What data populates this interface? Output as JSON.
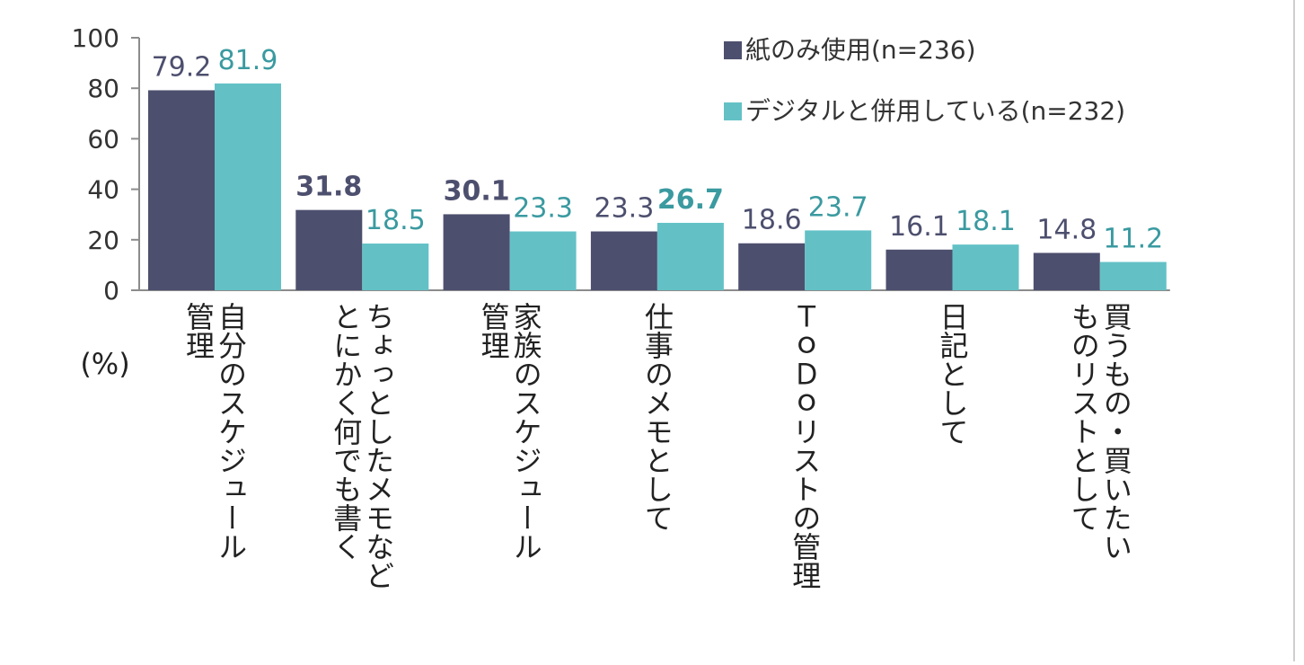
{
  "chart_data": {
    "type": "bar",
    "ylabel": "(%)",
    "ylim": [
      0,
      100
    ],
    "yticks": [
      "0",
      "20",
      "40",
      "60",
      "80",
      "100"
    ],
    "ytick_values": [
      0,
      20,
      40,
      60,
      80,
      100
    ],
    "categories": [
      [
        "自分のスケジュール",
        "管理"
      ],
      [
        "ちょっとしたメモなど",
        "とにかく何でも書く"
      ],
      [
        "家族のスケジュール",
        "管理"
      ],
      [
        "仕事のメモとして"
      ],
      [
        "ＴｏＤｏリストの管理"
      ],
      [
        "日記として"
      ],
      [
        "買うもの・買いたい",
        "ものリストとして"
      ]
    ],
    "series": [
      {
        "name": "紙のみ使用(n=236)",
        "color": "#4d4f6e",
        "label_color": "#4d4f6e",
        "values": [
          79.2,
          31.8,
          30.1,
          23.3,
          18.6,
          16.1,
          14.8
        ],
        "labels": [
          "79.2",
          "31.8",
          "30.1",
          "23.3",
          "18.6",
          "16.1",
          "14.8"
        ],
        "bold": [
          false,
          true,
          true,
          false,
          false,
          false,
          false
        ]
      },
      {
        "name": "デジタルと併用している(n=232)",
        "color": "#63c1c6",
        "label_color": "#3a9aa0",
        "values": [
          81.9,
          18.5,
          23.3,
          26.7,
          23.7,
          18.1,
          11.2
        ],
        "labels": [
          "81.9",
          "18.5",
          "23.3",
          "26.7",
          "23.7",
          "18.1",
          "11.2"
        ],
        "bold": [
          false,
          false,
          false,
          true,
          false,
          false,
          false
        ]
      }
    ],
    "legend_position": "top-right",
    "grid": false
  }
}
